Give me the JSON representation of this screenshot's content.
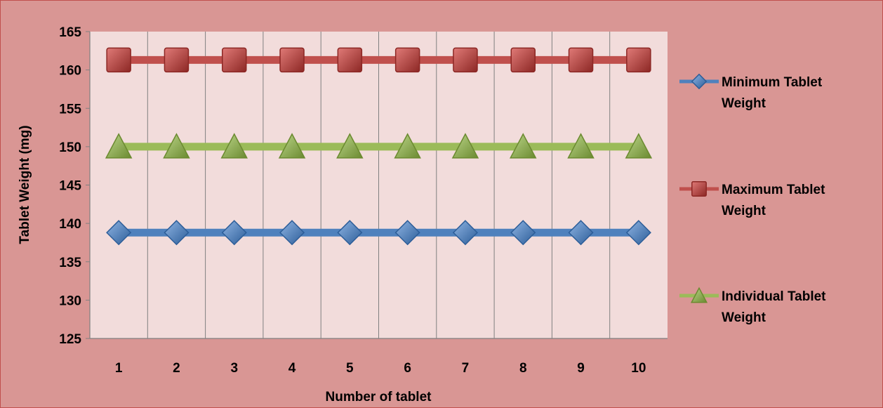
{
  "chart_data": {
    "type": "line",
    "categories": [
      "1",
      "2",
      "3",
      "4",
      "5",
      "6",
      "7",
      "8",
      "9",
      "10"
    ],
    "series": [
      {
        "name": "Minimum Tablet Weight",
        "values": [
          138.8,
          138.8,
          138.8,
          138.8,
          138.8,
          138.8,
          138.8,
          138.8,
          138.8,
          138.8
        ],
        "color": "#4f81bd",
        "marker": "diamond"
      },
      {
        "name": "Maximum Tablet Weight",
        "values": [
          161.3,
          161.3,
          161.3,
          161.3,
          161.3,
          161.3,
          161.3,
          161.3,
          161.3,
          161.3
        ],
        "color": "#c0504d",
        "marker": "square"
      },
      {
        "name": "Individual Tablet Weight",
        "values": [
          150,
          150,
          150,
          150,
          150,
          150,
          150,
          150,
          150,
          150
        ],
        "color": "#9bbb59",
        "marker": "triangle"
      }
    ],
    "title": "",
    "xlabel": "Number of tablet",
    "ylabel": "Tablet Weight (mg)",
    "ylim": [
      125,
      165
    ],
    "yticks": [
      125,
      130,
      135,
      140,
      145,
      150,
      155,
      160,
      165
    ],
    "grid": "vertical",
    "legend_position": "right",
    "colors": {
      "chart_background": "#d99694",
      "plot_background": "#f2dcdb",
      "border": "#c0504d",
      "gridline": "#808080"
    }
  }
}
